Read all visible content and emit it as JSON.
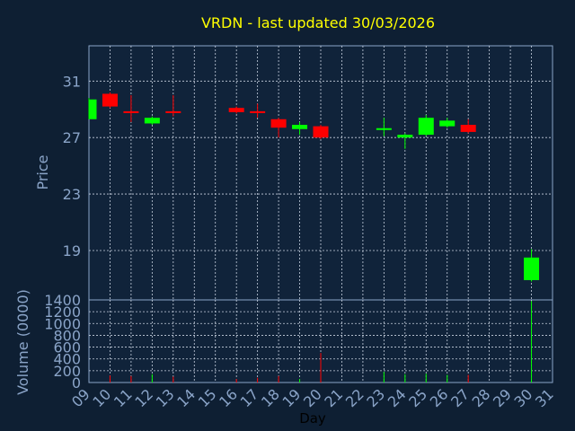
{
  "chart_data": {
    "type": "candlestick",
    "title": "VRDN - last updated 30/03/2026",
    "xlabel": "Day",
    "price_panel": {
      "ylabel": "Price",
      "ylim": [
        15.5,
        33.5
      ],
      "yticks": [
        19,
        23,
        27,
        31
      ],
      "grid": true
    },
    "volume_panel": {
      "ylabel": "Volume (0000)",
      "ylim": [
        0,
        1400
      ],
      "yticks": [
        0,
        200,
        400,
        600,
        800,
        1000,
        1200,
        1400
      ],
      "grid": true
    },
    "x_ticks": [
      "09",
      "10",
      "11",
      "12",
      "13",
      "14",
      "15",
      "16",
      "17",
      "18",
      "19",
      "20",
      "21",
      "22",
      "23",
      "24",
      "25",
      "26",
      "27",
      "28",
      "29",
      "30",
      "31"
    ],
    "up_color": "#00ff00",
    "down_color": "#ff0000",
    "candles": [
      {
        "day": 9,
        "open": 28.3,
        "high": 29.8,
        "low": 28.3,
        "close": 29.7,
        "volume": 0
      },
      {
        "day": 10,
        "open": 30.1,
        "high": 30.2,
        "low": 29.1,
        "close": 29.2,
        "volume": 120
      },
      {
        "day": 11,
        "open": 28.8,
        "high": 30.0,
        "low": 28.1,
        "close": 28.7,
        "volume": 110
      },
      {
        "day": 12,
        "open": 28.0,
        "high": 28.5,
        "low": 27.9,
        "close": 28.4,
        "volume": 140
      },
      {
        "day": 13,
        "open": 28.8,
        "high": 30.0,
        "low": 28.5,
        "close": 28.7,
        "volume": 100
      },
      {
        "day": 16,
        "open": 29.1,
        "high": 29.2,
        "low": 28.7,
        "close": 28.8,
        "volume": 60
      },
      {
        "day": 17,
        "open": 28.8,
        "high": 29.4,
        "low": 28.4,
        "close": 28.7,
        "volume": 80
      },
      {
        "day": 18,
        "open": 28.3,
        "high": 28.4,
        "low": 27.0,
        "close": 27.7,
        "volume": 110
      },
      {
        "day": 19,
        "open": 27.6,
        "high": 28.1,
        "low": 27.2,
        "close": 27.9,
        "volume": 60
      },
      {
        "day": 20,
        "open": 27.8,
        "high": 27.9,
        "low": 26.9,
        "close": 27.0,
        "volume": 500
      },
      {
        "day": 23,
        "open": 27.5,
        "high": 28.4,
        "low": 27.1,
        "close": 27.6,
        "volume": 180
      },
      {
        "day": 24,
        "open": 27.0,
        "high": 27.3,
        "low": 26.2,
        "close": 27.2,
        "volume": 140
      },
      {
        "day": 25,
        "open": 27.2,
        "high": 28.6,
        "low": 27.1,
        "close": 28.4,
        "volume": 150
      },
      {
        "day": 26,
        "open": 27.8,
        "high": 28.4,
        "low": 27.7,
        "close": 28.2,
        "volume": 130
      },
      {
        "day": 27,
        "open": 27.9,
        "high": 28.3,
        "low": 27.3,
        "close": 27.4,
        "volume": 130
      },
      {
        "day": 30,
        "open": 16.9,
        "high": 19.1,
        "low": 16.8,
        "close": 18.5,
        "volume": 1380
      }
    ]
  }
}
